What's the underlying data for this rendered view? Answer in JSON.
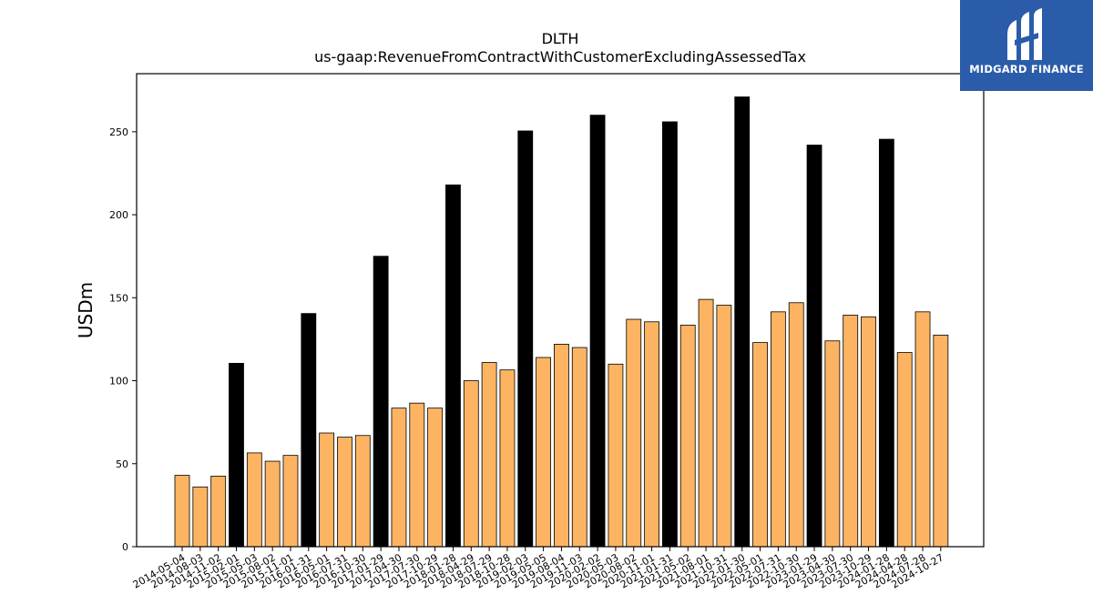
{
  "brand": {
    "name": "MIDGARD FINANCE",
    "background": "#2a5caa",
    "icon": "midgard-logo-icon"
  },
  "chart_data": {
    "type": "bar",
    "title": "DLTH",
    "subtitle": "us-gaap:RevenueFromContractWithCustomerExcludingAssessedTax",
    "xlabel": "",
    "ylabel": "USDm",
    "ylim": [
      0,
      285
    ],
    "yticks": [
      0,
      50,
      100,
      150,
      200,
      250
    ],
    "grid": false,
    "legend": "none",
    "colors": {
      "quarter": "#fdb462",
      "annual": "#000000",
      "edge": "#000000"
    },
    "categories": [
      "2014-05-04",
      "2014-08-03",
      "2014-11-02",
      "2015-02-01",
      "2015-05-03",
      "2015-08-02",
      "2015-11-01",
      "2016-01-31",
      "2016-05-01",
      "2016-07-31",
      "2016-10-30",
      "2017-01-29",
      "2017-04-30",
      "2017-07-30",
      "2017-10-29",
      "2018-01-28",
      "2018-04-29",
      "2018-07-29",
      "2018-10-28",
      "2019-02-03",
      "2019-05-05",
      "2019-08-04",
      "2019-11-03",
      "2020-02-02",
      "2020-05-03",
      "2020-08-02",
      "2020-11-01",
      "2021-01-31",
      "2021-05-02",
      "2021-08-01",
      "2021-10-31",
      "2022-01-30",
      "2022-05-01",
      "2022-07-31",
      "2022-10-30",
      "2023-01-29",
      "2023-04-30",
      "2023-07-30",
      "2023-10-29",
      "2024-01-28",
      "2024-04-28",
      "2024-07-28",
      "2024-10-27"
    ],
    "values": [
      43,
      36,
      42.5,
      110.5,
      56.5,
      51.5,
      55,
      140.5,
      68.5,
      66,
      67,
      175,
      83.5,
      86.5,
      83.5,
      218,
      100,
      111,
      106.5,
      250.5,
      114,
      122,
      120,
      260,
      110,
      137,
      135.5,
      256,
      133.5,
      149,
      145.5,
      271,
      123,
      141.5,
      147,
      242,
      124,
      139.5,
      138.5,
      245.5,
      117,
      141.5,
      127.5
    ],
    "annual_flags": [
      0,
      0,
      0,
      1,
      0,
      0,
      0,
      1,
      0,
      0,
      0,
      1,
      0,
      0,
      0,
      1,
      0,
      0,
      0,
      1,
      0,
      0,
      0,
      1,
      0,
      0,
      0,
      1,
      0,
      0,
      0,
      1,
      0,
      0,
      0,
      1,
      0,
      0,
      0,
      1,
      0,
      0,
      0
    ]
  }
}
